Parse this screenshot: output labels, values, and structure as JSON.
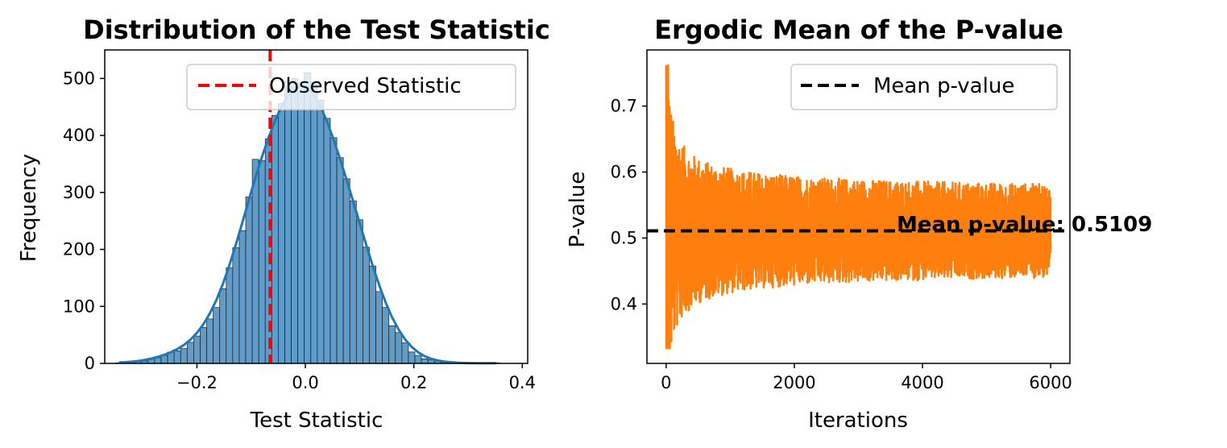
{
  "chart_data": [
    {
      "type": "bar",
      "subtype": "histogram",
      "title": "Distribution of the Test Statistic",
      "xlabel": "Test Statistic",
      "ylabel": "Frequency",
      "xlim": [
        -0.37,
        0.41
      ],
      "ylim": [
        0,
        550
      ],
      "xticks": [
        -0.2,
        0.0,
        0.2,
        0.4
      ],
      "xtick_labels": [
        "−0.2",
        "0.0",
        "0.2",
        "0.4"
      ],
      "yticks": [
        0,
        100,
        200,
        300,
        400,
        500
      ],
      "bin_start": -0.35,
      "bin_width": 0.012,
      "counts": [
        1,
        1,
        2,
        3,
        4,
        8,
        10,
        14,
        20,
        22,
        26,
        37,
        48,
        63,
        78,
        98,
        131,
        168,
        203,
        233,
        292,
        358,
        356,
        394,
        435,
        456,
        496,
        500,
        492,
        510,
        493,
        462,
        430,
        396,
        361,
        324,
        285,
        252,
        204,
        171,
        126,
        98,
        66,
        54,
        36,
        20,
        14,
        8,
        6,
        4,
        2,
        1,
        1,
        1,
        0,
        0,
        0,
        0,
        1
      ],
      "bar_color": "#4f91c3",
      "bar_edge_color": "#1a1a1a",
      "kde_color": "#1f77b4",
      "series": [
        {
          "name": "Observed Statistic",
          "type": "vline",
          "x": -0.065,
          "color": "#ff0000",
          "style": "dashed"
        }
      ],
      "legend_position": "top-right"
    },
    {
      "type": "line",
      "title": "Ergodic Mean of the P-value",
      "xlabel": "Iterations",
      "ylabel": "P-value",
      "xlim": [
        -300,
        6300
      ],
      "ylim": [
        0.31,
        0.785
      ],
      "xticks": [
        0,
        2000,
        4000,
        6000
      ],
      "yticks": [
        0.4,
        0.5,
        0.6,
        0.7
      ],
      "series": [
        {
          "type": "line",
          "name": "",
          "n_points": 6000,
          "color": "#ff7f0e",
          "converges_to": 0.5109,
          "initial_range": [
            0.333,
            0.762
          ]
        },
        {
          "name": "Mean p-value",
          "type": "hline",
          "y": 0.5109,
          "color": "#000000",
          "style": "dashed"
        }
      ],
      "annotation": "Mean p-value: 0.5109",
      "legend_position": "top-right"
    }
  ]
}
